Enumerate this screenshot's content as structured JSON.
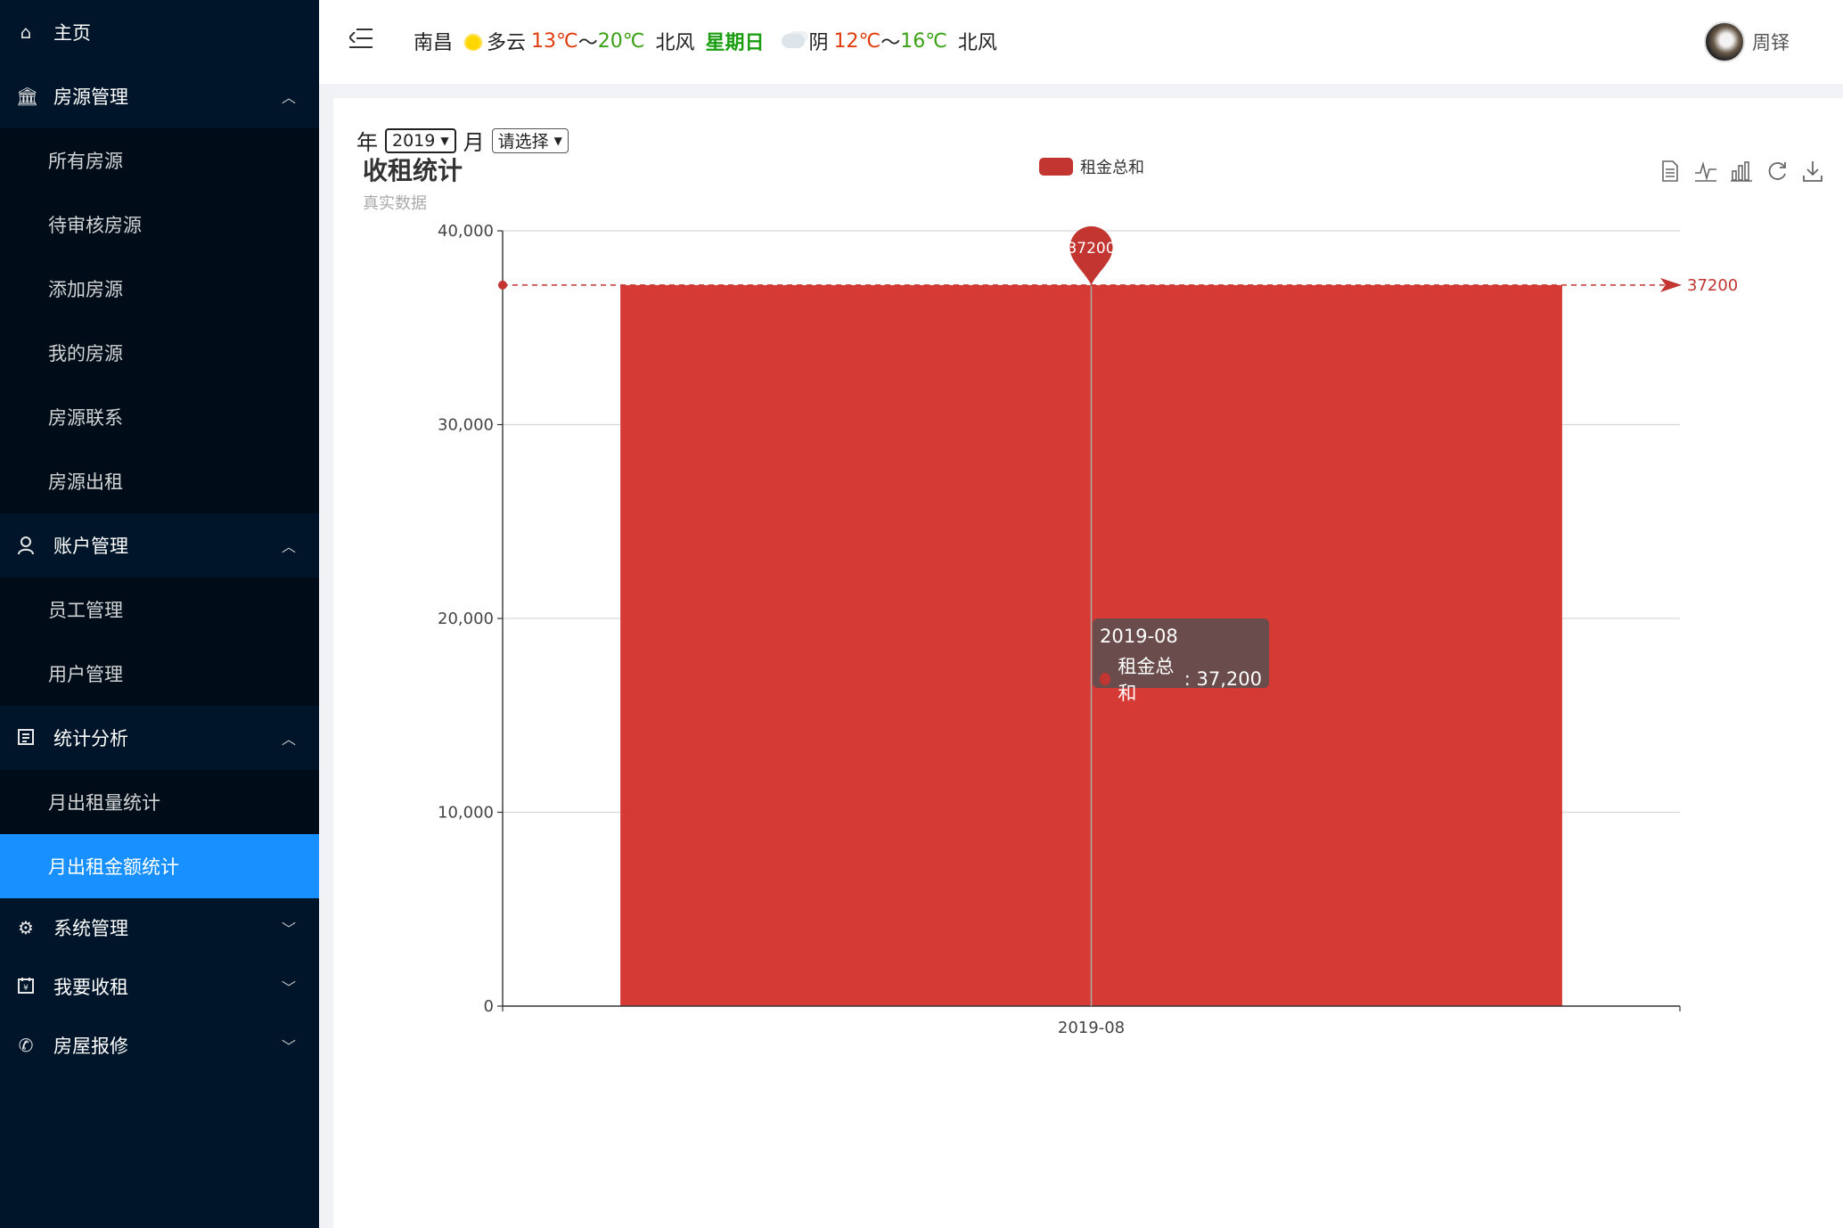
{
  "sidebar": {
    "home": {
      "label": "主页",
      "icon": "home-icon"
    },
    "groups": [
      {
        "label": "房源管理",
        "icon": "bank-icon",
        "expanded": true,
        "items": [
          "所有房源",
          "待审核房源",
          "添加房源",
          "我的房源",
          "房源联系",
          "房源出租"
        ]
      },
      {
        "label": "账户管理",
        "icon": "user-icon",
        "expanded": true,
        "items": [
          "员工管理",
          "用户管理"
        ]
      },
      {
        "label": "统计分析",
        "icon": "report-icon",
        "expanded": true,
        "items": [
          "月出租量统计",
          "月出租金额统计"
        ]
      }
    ],
    "active_item": "月出租金额统计",
    "collapsed_groups": [
      {
        "label": "系统管理",
        "icon": "gear-icon"
      },
      {
        "label": "我要收租",
        "icon": "calendar-yen-icon"
      },
      {
        "label": "房屋报修",
        "icon": "phone-icon"
      }
    ]
  },
  "header": {
    "city": "南昌",
    "today": {
      "weather": "多云",
      "low": "13℃",
      "sep": "～",
      "high": "20℃",
      "wind": "北风",
      "weather_icon": "sun-cloud-icon"
    },
    "weekday": "星期日",
    "tomorrow": {
      "weather": "阴",
      "low": "12℃",
      "sep": "～",
      "high": "16℃",
      "wind": "北风",
      "weather_icon": "cloud-icon"
    },
    "user_name": "周铎"
  },
  "filters": {
    "year_label": "年",
    "year_value": "2019",
    "month_label": "月",
    "month_value": "请选择"
  },
  "chart_data": {
    "type": "bar",
    "title": "收租统计",
    "subtitle": "真实数据",
    "categories": [
      "2019-08"
    ],
    "series": [
      {
        "name": "租金总和",
        "values": [
          37200
        ],
        "color": "#d63a35"
      }
    ],
    "ylim": [
      0,
      40000
    ],
    "yticks": [
      0,
      10000,
      20000,
      30000,
      40000
    ],
    "ytick_labels": [
      "0",
      "10,000",
      "20,000",
      "30,000",
      "40,000"
    ],
    "markpoint": {
      "label": "37200",
      "value": 37200
    },
    "markline": {
      "label": "37200",
      "value": 37200
    },
    "legend_position": "top-center",
    "grid": true,
    "tooltip": {
      "title": "2019-08",
      "series_name": "租金总和",
      "value_text": "37,200"
    }
  },
  "toolbox": [
    "data-view-icon",
    "line-chart-icon",
    "bar-chart-icon",
    "restore-icon",
    "download-icon"
  ]
}
